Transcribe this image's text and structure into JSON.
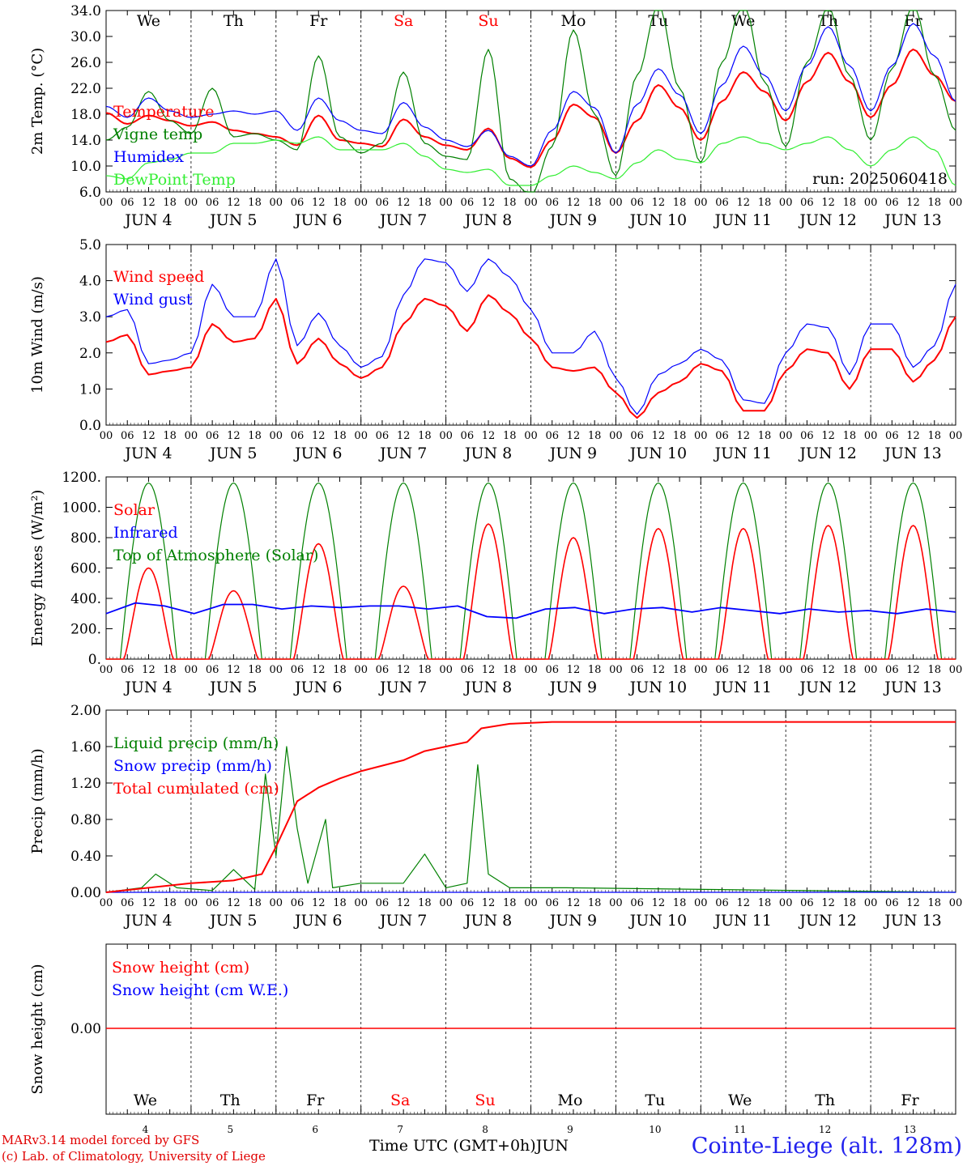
{
  "run_label": "run: 2025060418",
  "colors": {
    "red": "#ff0000",
    "blue": "#0000ff",
    "green": "#008000",
    "lime": "#33ee33",
    "weekend": "#ff0000"
  },
  "days": {
    "weekday_labels": [
      "We",
      "Th",
      "Fr",
      "Sa",
      "Su",
      "Mo",
      "Tu",
      "We",
      "Th",
      "Fr"
    ],
    "weekend_days": [
      "Sa",
      "Su"
    ],
    "date_labels": [
      "JUN  4",
      "JUN  5",
      "JUN  6",
      "JUN  7",
      "JUN  8",
      "JUN  9",
      "JUN 10",
      "JUN 11",
      "JUN 12",
      "JUN 13"
    ],
    "day_numbers": [
      "4",
      "5",
      "6",
      "7",
      "8",
      "9",
      "10",
      "11",
      "12",
      "13"
    ],
    "hour_ticks": [
      "00",
      "06",
      "12",
      "18"
    ]
  },
  "footer": {
    "credit_line1": "MARv3.14 model forced by GFS",
    "credit_line2": "(c) Lab. of Climatology, University of Liege",
    "x_axis_label": "Time UTC (GMT+0h)JUN",
    "station": "Cointe-Liege (alt. 128m)"
  },
  "chart_data": [
    {
      "type": "line",
      "ylabel": "2m Temp. (°C)",
      "ylim": [
        6,
        34
      ],
      "yticks": [
        "6.0",
        "10.0",
        "14.0",
        "18.0",
        "22.0",
        "26.0",
        "30.0",
        "34.0"
      ],
      "x_hours": [
        0,
        6,
        12,
        18,
        24,
        30,
        36,
        42,
        48,
        54,
        60,
        66,
        72,
        78,
        84,
        90,
        96,
        102,
        108,
        114,
        120,
        126,
        132,
        138,
        144,
        150,
        156,
        162,
        168,
        174,
        180,
        186,
        192,
        198,
        204,
        210,
        216,
        222,
        228,
        234,
        240
      ],
      "series": [
        {
          "name": "Temperature",
          "color": "red",
          "values": [
            18.2,
            16.5,
            17.8,
            17.0,
            16.2,
            16.8,
            15.5,
            15.0,
            14.5,
            13.2,
            17.8,
            14.0,
            13.5,
            13.0,
            17.2,
            14.5,
            13.2,
            12.5,
            15.8,
            11.2,
            9.8,
            14.0,
            19.5,
            17.5,
            12.0,
            17.0,
            22.5,
            19.0,
            14.0,
            20.0,
            24.5,
            21.5,
            17.0,
            23.0,
            27.5,
            23.0,
            17.5,
            22.5,
            28.0,
            24.0,
            20.0
          ]
        },
        {
          "name": "Vigne temp",
          "color": "green",
          "values": [
            14.0,
            16.0,
            21.5,
            17.0,
            15.0,
            22.0,
            14.5,
            15.0,
            14.0,
            12.5,
            27.0,
            14.5,
            12.0,
            13.5,
            24.5,
            13.5,
            11.5,
            11.0,
            28.0,
            8.0,
            5.5,
            13.0,
            31.0,
            18.0,
            8.5,
            24.0,
            35.0,
            22.0,
            10.5,
            26.0,
            35.5,
            23.0,
            13.0,
            26.0,
            34.5,
            24.0,
            14.0,
            25.0,
            35.0,
            24.0,
            15.5
          ]
        },
        {
          "name": "Humidex",
          "color": "blue",
          "values": [
            19.2,
            17.5,
            20.5,
            18.5,
            17.5,
            18.0,
            18.5,
            18.0,
            18.5,
            15.5,
            20.5,
            17.0,
            15.5,
            15.0,
            19.8,
            16.0,
            14.0,
            13.0,
            15.5,
            11.5,
            10.0,
            15.5,
            21.5,
            19.0,
            12.0,
            19.5,
            25.0,
            21.0,
            15.0,
            22.5,
            28.5,
            24.0,
            18.5,
            25.5,
            31.5,
            25.5,
            18.5,
            25.5,
            32.0,
            27.0,
            20.0
          ]
        },
        {
          "name": "DewPoint Temp",
          "color": "lime",
          "values": [
            8.5,
            8.0,
            10.5,
            11.0,
            12.0,
            12.0,
            13.5,
            13.5,
            14.0,
            13.5,
            14.5,
            12.5,
            12.5,
            12.5,
            13.5,
            11.5,
            9.5,
            9.0,
            9.5,
            7.0,
            7.0,
            8.5,
            10.0,
            9.0,
            8.0,
            10.5,
            12.5,
            11.0,
            10.5,
            13.5,
            14.5,
            13.5,
            12.5,
            13.5,
            14.5,
            12.5,
            10.0,
            12.5,
            14.5,
            12.5,
            7.0
          ]
        }
      ]
    },
    {
      "type": "line",
      "ylabel": "10m Wind (m/s)",
      "ylim": [
        0,
        5
      ],
      "yticks": [
        "0.0",
        "1.0",
        "2.0",
        "3.0",
        "4.0",
        "5.0"
      ],
      "x_hours": [
        0,
        6,
        12,
        18,
        24,
        30,
        36,
        42,
        48,
        54,
        60,
        66,
        72,
        78,
        84,
        90,
        96,
        102,
        108,
        114,
        120,
        126,
        132,
        138,
        144,
        150,
        156,
        162,
        168,
        174,
        180,
        186,
        192,
        198,
        204,
        210,
        216,
        222,
        228,
        234,
        240
      ],
      "series": [
        {
          "name": "Wind speed",
          "color": "red",
          "values": [
            2.3,
            2.5,
            1.4,
            1.5,
            1.6,
            2.8,
            2.3,
            2.4,
            3.5,
            1.7,
            2.4,
            1.7,
            1.3,
            1.6,
            2.8,
            3.5,
            3.3,
            2.6,
            3.6,
            3.1,
            2.4,
            1.6,
            1.5,
            1.6,
            0.9,
            0.2,
            0.9,
            1.2,
            1.7,
            1.5,
            0.4,
            0.4,
            1.5,
            2.1,
            2.0,
            1.0,
            2.1,
            2.1,
            1.2,
            1.8,
            3.0
          ]
        },
        {
          "name": "Wind gust",
          "color": "blue",
          "values": [
            3.0,
            3.2,
            1.7,
            1.8,
            2.0,
            3.9,
            3.0,
            3.0,
            4.6,
            2.2,
            3.1,
            2.2,
            1.6,
            1.9,
            3.6,
            4.6,
            4.5,
            3.7,
            4.6,
            4.1,
            3.2,
            2.0,
            2.0,
            2.6,
            1.3,
            0.3,
            1.4,
            1.7,
            2.1,
            1.8,
            0.7,
            0.6,
            2.0,
            2.8,
            2.7,
            1.4,
            2.8,
            2.8,
            1.6,
            2.2,
            3.9
          ]
        }
      ]
    },
    {
      "type": "line",
      "ylabel": "Energy fluxes (W/m²)",
      "ylim": [
        0,
        1200
      ],
      "yticks": [
        "0.",
        "200.",
        "400.",
        "600.",
        "800.",
        "1000.",
        "1200."
      ],
      "solar_noon_peaks_toa": [
        1160,
        1160,
        1160,
        1160,
        1160,
        1160,
        1160,
        1160,
        1160,
        1160
      ],
      "solar_daily_peaks": [
        600,
        450,
        760,
        480,
        890,
        800,
        860,
        860,
        880,
        880
      ],
      "series": [
        {
          "name": "Solar",
          "color": "red",
          "note": "daily cycle, peaks listed"
        },
        {
          "name": "Infrared",
          "color": "blue",
          "values": [
            300,
            370,
            350,
            300,
            360,
            360,
            330,
            350,
            340,
            350,
            350,
            330,
            350,
            280,
            270,
            330,
            340,
            300,
            330,
            340,
            310,
            340,
            320,
            300,
            330,
            310,
            320,
            300,
            330,
            310
          ]
        },
        {
          "name": "Top of Atmosphere (Solar)",
          "color": "green",
          "note": "daily cycle"
        }
      ]
    },
    {
      "type": "line",
      "ylabel": "Precip (mm/h)",
      "ylim": [
        0,
        2
      ],
      "yticks": [
        "0.00",
        "0.40",
        "0.80",
        "1.20",
        "1.60",
        "2.00"
      ],
      "series": [
        {
          "name": "Liquid precip (mm/h)",
          "color": "green",
          "points": [
            [
              0,
              0
            ],
            [
              10,
              0.05
            ],
            [
              14,
              0.2
            ],
            [
              20,
              0.05
            ],
            [
              30,
              0.02
            ],
            [
              36,
              0.25
            ],
            [
              42,
              0.03
            ],
            [
              45,
              1.3
            ],
            [
              48,
              0.4
            ],
            [
              51,
              1.6
            ],
            [
              54,
              0.7
            ],
            [
              57,
              0.1
            ],
            [
              62,
              0.8
            ],
            [
              64,
              0.05
            ],
            [
              72,
              0.1
            ],
            [
              84,
              0.1
            ],
            [
              90,
              0.42
            ],
            [
              96,
              0.05
            ],
            [
              102,
              0.1
            ],
            [
              105,
              1.4
            ],
            [
              108,
              0.2
            ],
            [
              114,
              0.05
            ],
            [
              130,
              0.05
            ],
            [
              240,
              0
            ]
          ]
        },
        {
          "name": "Snow precip (mm/h)",
          "color": "blue",
          "points": [
            [
              0,
              0
            ],
            [
              240,
              0
            ]
          ]
        },
        {
          "name": "Total cumulated (cm)",
          "color": "red",
          "points": [
            [
              0,
              0
            ],
            [
              12,
              0.05
            ],
            [
              24,
              0.1
            ],
            [
              36,
              0.13
            ],
            [
              44,
              0.2
            ],
            [
              48,
              0.5
            ],
            [
              54,
              1.0
            ],
            [
              60,
              1.15
            ],
            [
              66,
              1.25
            ],
            [
              72,
              1.33
            ],
            [
              84,
              1.45
            ],
            [
              90,
              1.55
            ],
            [
              96,
              1.6
            ],
            [
              102,
              1.65
            ],
            [
              106,
              1.8
            ],
            [
              114,
              1.85
            ],
            [
              126,
              1.87
            ],
            [
              240,
              1.87
            ]
          ]
        }
      ]
    },
    {
      "type": "line",
      "ylabel": "Snow height (cm)",
      "yticks": [
        "0.00"
      ],
      "series": [
        {
          "name": "Snow height (cm)",
          "color": "red",
          "values": [
            0,
            0
          ]
        },
        {
          "name": "Snow height (cm W.E.)",
          "color": "blue",
          "values": [
            0,
            0
          ]
        }
      ]
    }
  ]
}
